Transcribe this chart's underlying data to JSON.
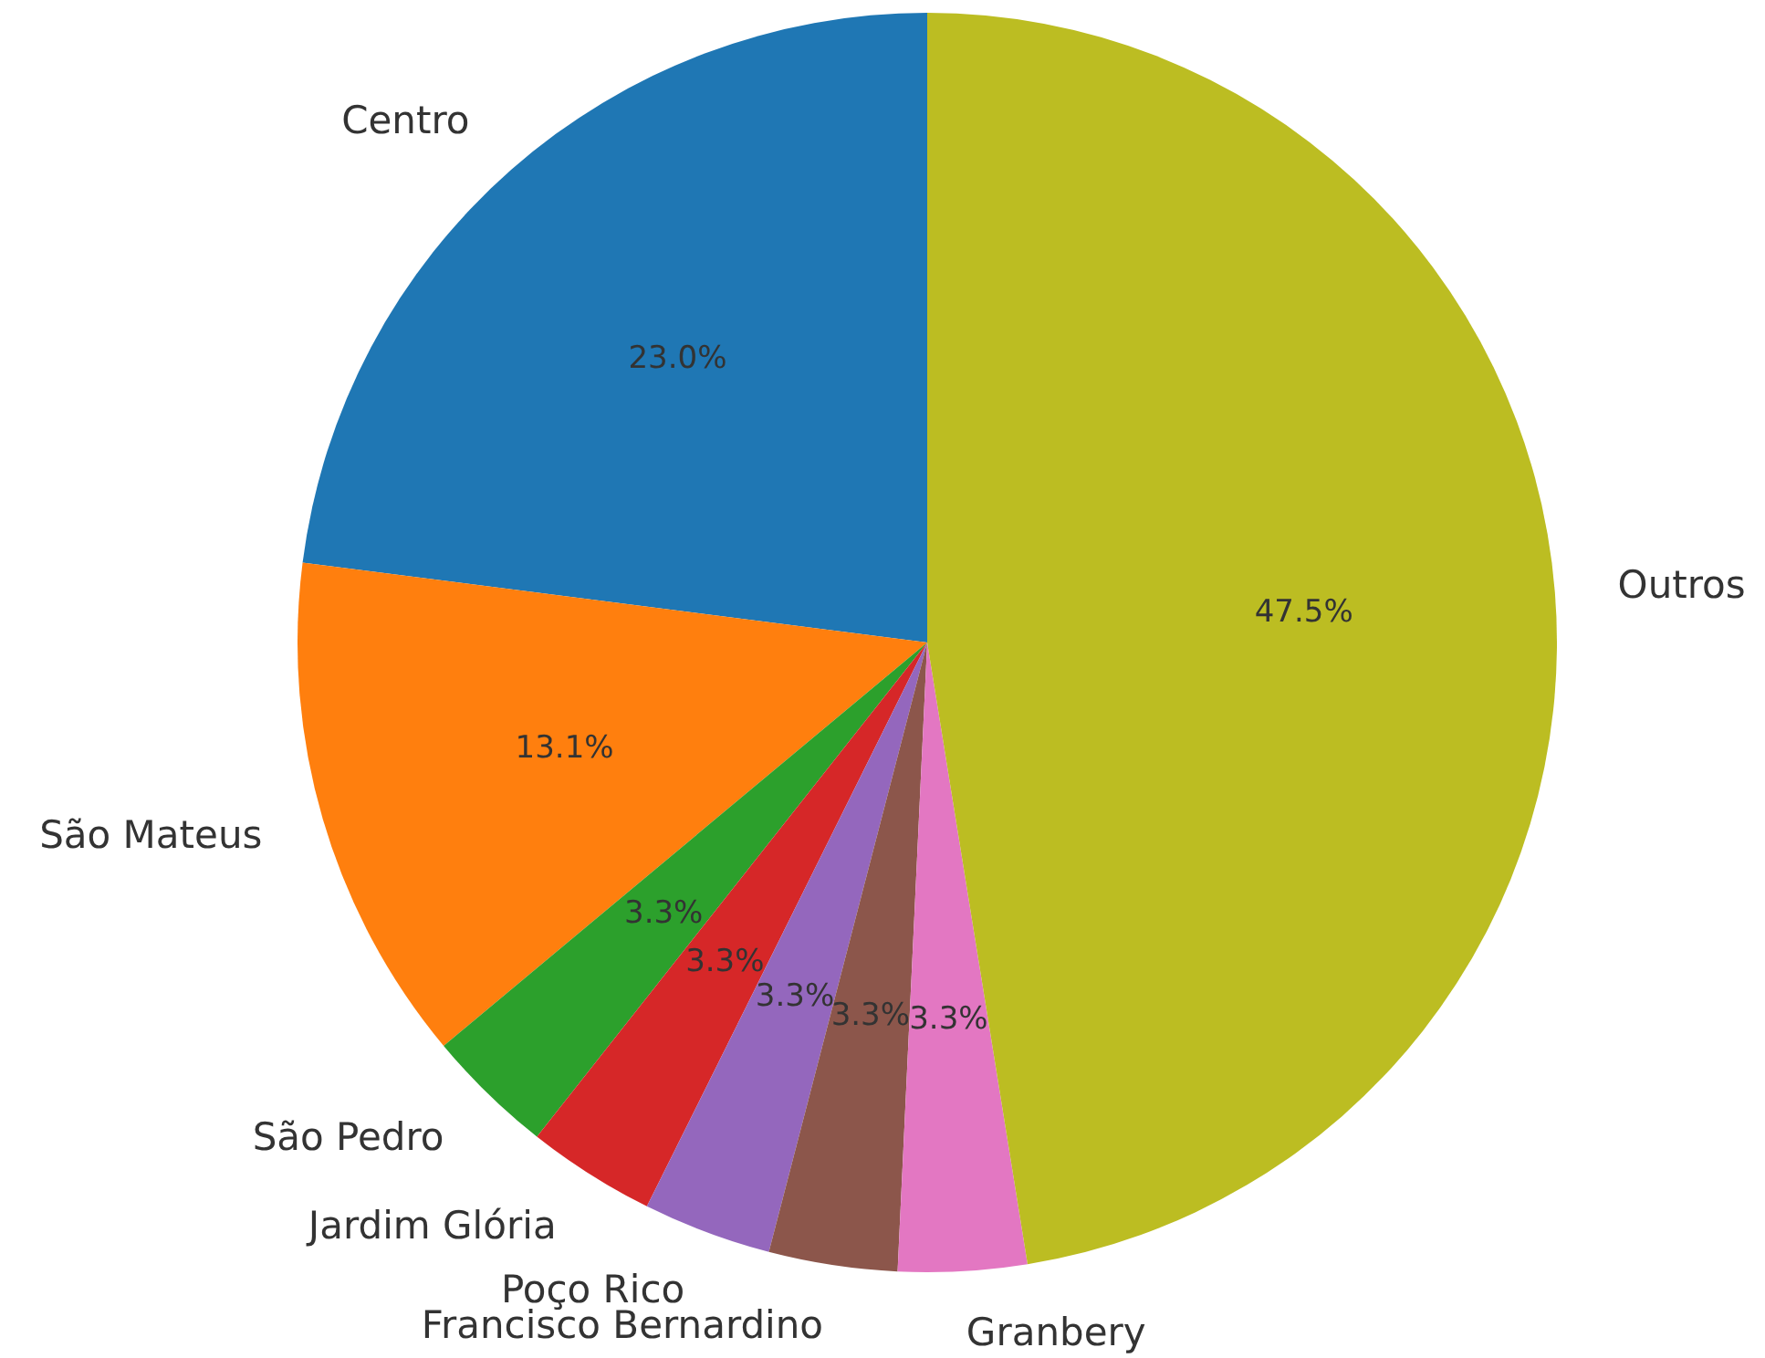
{
  "chart_data": {
    "type": "pie",
    "categories": [
      "Centro",
      "São Mateus",
      "São Pedro",
      "Jardim Glória",
      "Poço Rico",
      "Francisco Bernardino",
      "Granbery",
      "Outros"
    ],
    "values": [
      23.0,
      13.1,
      3.3,
      3.3,
      3.3,
      3.3,
      3.3,
      47.5
    ],
    "value_labels": [
      "23.0%",
      "13.1%",
      "3.3%",
      "3.3%",
      "3.3%",
      "3.3%",
      "3.3%",
      "47.5%"
    ],
    "colors": [
      "#1f77b4",
      "#ff7f0e",
      "#2ca02c",
      "#d62728",
      "#9467bd",
      "#8c564b",
      "#e377c2",
      "#bcbd22"
    ]
  }
}
